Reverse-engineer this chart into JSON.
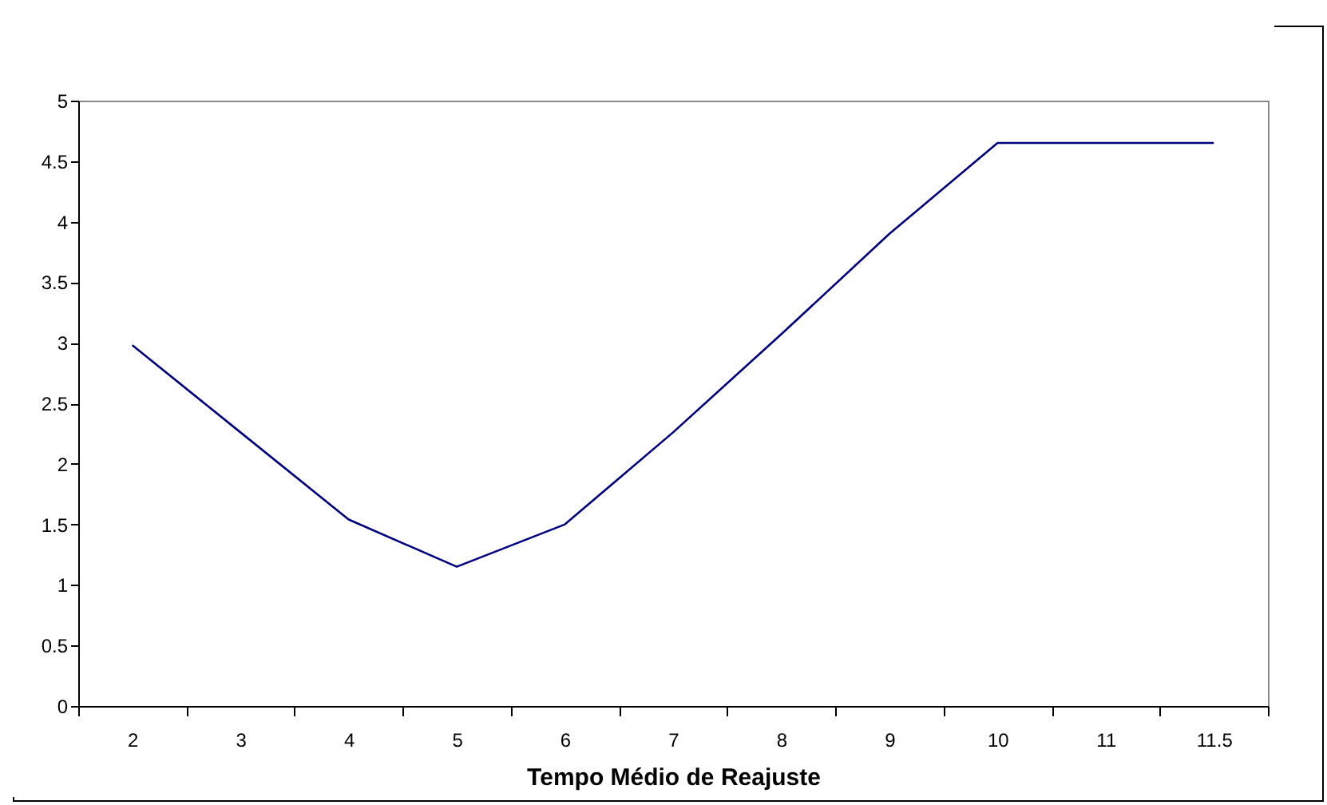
{
  "chart_data": {
    "type": "line",
    "xlabel": "Tempo Médio de Reajuste",
    "categories": [
      "2",
      "3",
      "4",
      "5",
      "6",
      "7",
      "8",
      "9",
      "10",
      "11",
      "11.5"
    ],
    "series": [
      {
        "color": "#000080",
        "values": [
          2.98,
          2.26,
          1.54,
          1.15,
          1.5,
          2.26,
          3.07,
          3.9,
          4.65,
          4.65,
          4.65
        ]
      }
    ],
    "ylim": [
      0,
      5
    ],
    "yticks": [
      0,
      0.5,
      1,
      1.5,
      2,
      2.5,
      3,
      3.5,
      4,
      4.5,
      5
    ],
    "grid": false,
    "marker": "none",
    "line_style": "solid"
  }
}
